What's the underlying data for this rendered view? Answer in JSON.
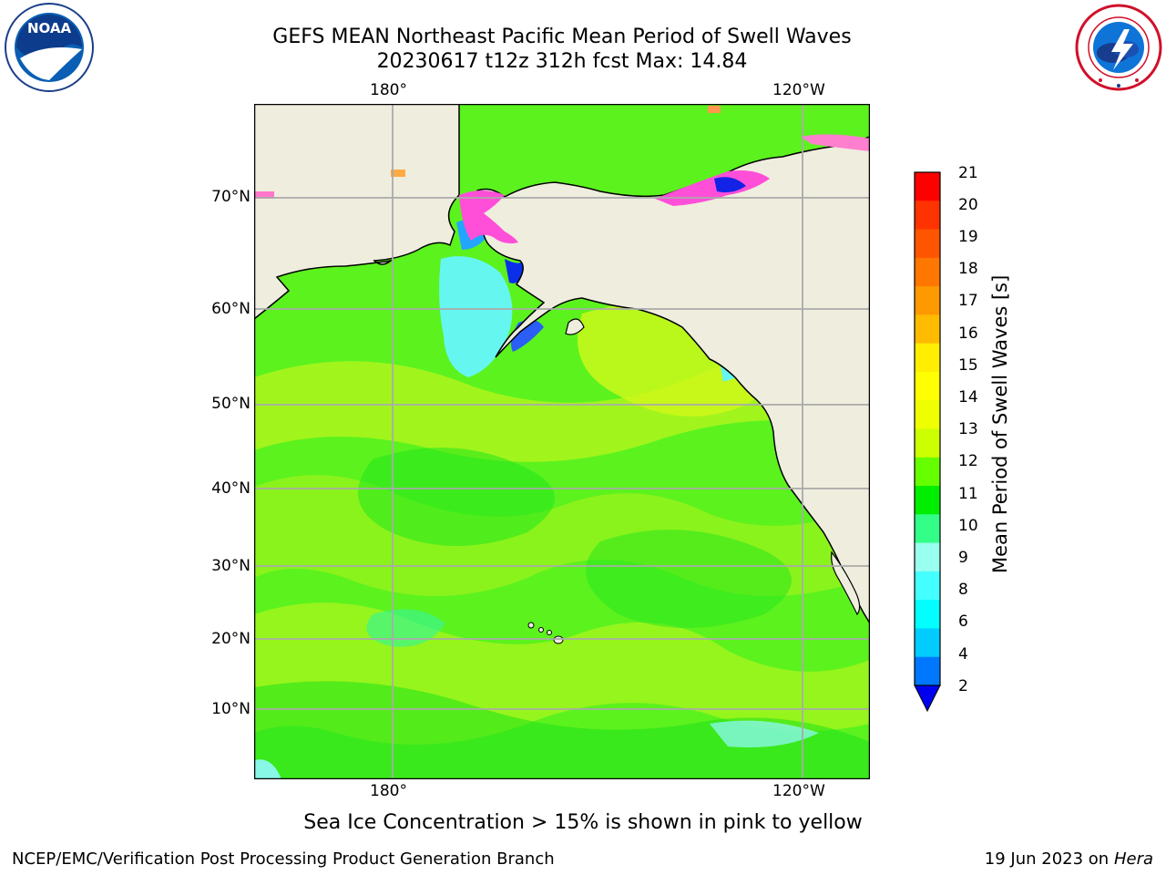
{
  "header": {
    "title_line1": "GEFS MEAN Northeast Pacific Mean Period of Swell Waves",
    "title_line2": "20230617 t12z 312h fcst   Max: 14.84"
  },
  "logos": {
    "left": "NOAA",
    "left_ring": "NATIONAL OCEANIC AND ATMOSPHERIC ADMINISTRATION · U.S. DEPARTMENT OF COMMERCE",
    "right_ring": "NATIONAL WEATHER SERVICE"
  },
  "map": {
    "lon_labels": [
      "180°",
      "120°W"
    ],
    "lat_labels": [
      "70°N",
      "60°N",
      "50°N",
      "40°N",
      "30°N",
      "20°N",
      "10°N"
    ],
    "colors": {
      "land": "#efedde",
      "ocean_green": "#33ee22",
      "ocean_yellow": "#ccff00",
      "ice_pink": "#ff55dd"
    }
  },
  "colorbar": {
    "title": "Mean Period of Swell Waves [s]",
    "tick_labels": [
      "21",
      "20",
      "19",
      "18",
      "17",
      "16",
      "15",
      "14",
      "13",
      "12",
      "11",
      "10",
      "9",
      "8",
      "6",
      "4",
      "2"
    ],
    "colors": [
      "#ff0000",
      "#ff3300",
      "#ff5500",
      "#ff7700",
      "#ff9900",
      "#ffbb00",
      "#ffee00",
      "#ffff00",
      "#eeff00",
      "#ccff00",
      "#66ff00",
      "#00ee00",
      "#33ff88",
      "#99ffee",
      "#44ffff",
      "#00ffff",
      "#00ccff",
      "#0077ff"
    ],
    "extend_color": "#0000ee"
  },
  "notes": {
    "sea_ice": "Sea Ice Concentration > 15% is shown in pink to yellow",
    "credit": "NCEP/EMC/Verification Post Processing Product Generation Branch",
    "date": "19 Jun 2023 on",
    "machine": "Hera"
  }
}
